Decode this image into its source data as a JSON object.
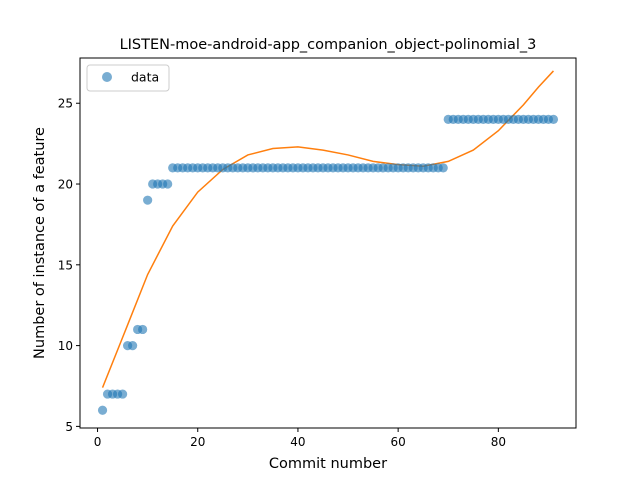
{
  "chart_data": {
    "type": "scatter",
    "title": "LISTEN-moe-android-app_companion_object-polinomial_3",
    "xlabel": "Commit number",
    "ylabel": "Number of instance of a feature",
    "xlim": [
      -3.5,
      95.5
    ],
    "ylim": [
      4.9,
      27.8
    ],
    "xticks": [
      0,
      20,
      40,
      60,
      80
    ],
    "yticks": [
      5,
      10,
      15,
      20,
      25
    ],
    "grid": false,
    "legend": {
      "position": "upper-left",
      "entries": [
        "data"
      ]
    },
    "series": [
      {
        "name": "data",
        "kind": "scatter",
        "color": "#1f77b4",
        "x": [
          1,
          2,
          3,
          4,
          5,
          6,
          7,
          8,
          9,
          10,
          11,
          12,
          13,
          14,
          15,
          16,
          17,
          18,
          19,
          20,
          21,
          22,
          23,
          24,
          25,
          26,
          27,
          28,
          29,
          30,
          31,
          32,
          33,
          34,
          35,
          36,
          37,
          38,
          39,
          40,
          41,
          42,
          43,
          44,
          45,
          46,
          47,
          48,
          49,
          50,
          51,
          52,
          53,
          54,
          55,
          56,
          57,
          58,
          59,
          60,
          61,
          62,
          63,
          64,
          65,
          66,
          67,
          68,
          69,
          70,
          71,
          72,
          73,
          74,
          75,
          76,
          77,
          78,
          79,
          80,
          81,
          82,
          83,
          84,
          85,
          86,
          87,
          88,
          89,
          90,
          91
        ],
        "y": [
          6,
          7,
          7,
          7,
          7,
          10,
          10,
          11,
          11,
          19,
          20,
          20,
          20,
          20,
          21,
          21,
          21,
          21,
          21,
          21,
          21,
          21,
          21,
          21,
          21,
          21,
          21,
          21,
          21,
          21,
          21,
          21,
          21,
          21,
          21,
          21,
          21,
          21,
          21,
          21,
          21,
          21,
          21,
          21,
          21,
          21,
          21,
          21,
          21,
          21,
          21,
          21,
          21,
          21,
          21,
          21,
          21,
          21,
          21,
          21,
          21,
          21,
          21,
          21,
          21,
          21,
          21,
          21,
          21,
          24,
          24,
          24,
          24,
          24,
          24,
          24,
          24,
          24,
          24,
          24,
          24,
          24,
          24,
          24,
          24,
          24,
          24,
          24,
          24,
          24,
          24
        ]
      },
      {
        "kind": "line",
        "color": "#ff7f0e",
        "x": [
          1,
          5,
          10,
          15,
          20,
          25,
          30,
          35,
          40,
          45,
          50,
          55,
          60,
          65,
          70,
          75,
          80,
          85,
          88,
          91
        ],
        "y": [
          7.4,
          10.5,
          14.4,
          17.4,
          19.5,
          20.9,
          21.8,
          22.2,
          22.3,
          22.1,
          21.8,
          21.4,
          21.2,
          21.1,
          21.4,
          22.1,
          23.3,
          24.9,
          26.0,
          27.0
        ]
      }
    ]
  }
}
